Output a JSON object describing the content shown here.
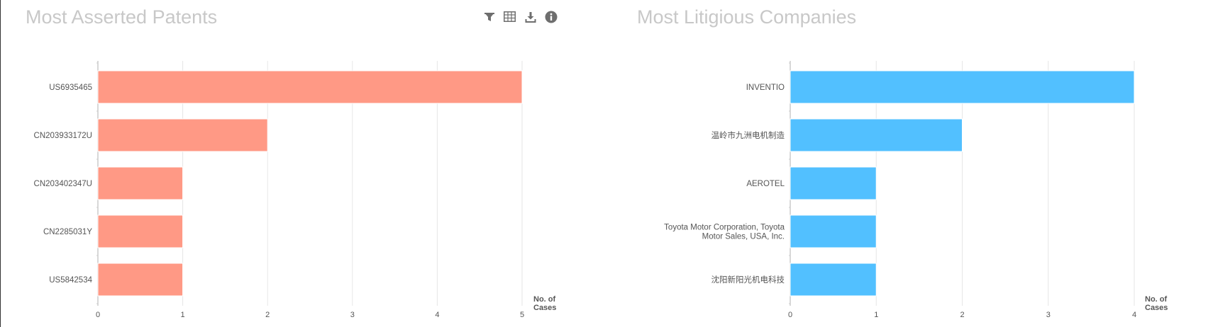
{
  "chart_data": [
    {
      "type": "bar",
      "orientation": "horizontal",
      "title": "Most Asserted Patents",
      "categories": [
        "US6935465",
        "CN203933172U",
        "CN203402347U",
        "CN2285031Y",
        "US5842534"
      ],
      "values": [
        5,
        2,
        1,
        1,
        1
      ],
      "xlabel": "No. of Cases",
      "xlim": [
        0,
        5
      ],
      "xticks": [
        0,
        1,
        2,
        3,
        4,
        5
      ],
      "color": "#ff9985",
      "grid": "vertical"
    },
    {
      "type": "bar",
      "orientation": "horizontal",
      "title": "Most Litigious Companies",
      "categories": [
        "INVENTIO",
        "温岭市九洲电机制造",
        "AEROTEL",
        "Toyota Motor Corporation, Toyota Motor Sales, USA, Inc.",
        "沈阳新阳光机电科技"
      ],
      "values": [
        4,
        2,
        1,
        1,
        1
      ],
      "xlabel": "No. of Cases",
      "xlim": [
        0,
        4
      ],
      "xticks": [
        0,
        1,
        2,
        3,
        4
      ],
      "color": "#52c0ff",
      "grid": "vertical"
    }
  ],
  "toolbar": {
    "icons": [
      "filter-icon",
      "table-icon",
      "download-icon",
      "info-icon"
    ],
    "icon_color": "#6e6e6e"
  },
  "category_label_lines": {
    "Toyota Motor Corporation, Toyota Motor Sales, USA, Inc.": [
      "Toyota Motor Corporation, Toyota",
      "Motor Sales, USA, Inc."
    ]
  },
  "axis_title_lines": [
    "No. of",
    "Cases"
  ]
}
